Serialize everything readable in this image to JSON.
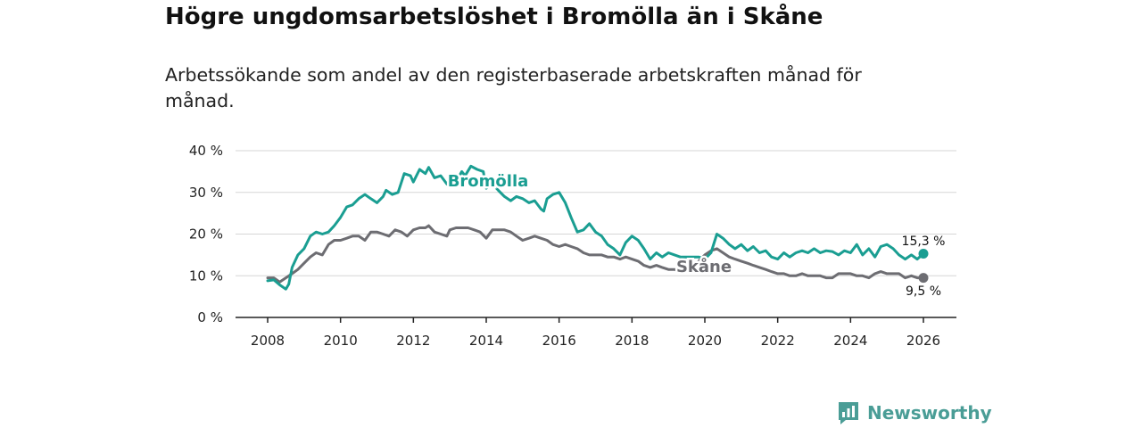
{
  "title": "Högre ungdomsarbetslöshet i Bromölla än i Skåne",
  "subtitle": "Arbetssökande som andel av den registerbaserade arbetskraften månad för månad.",
  "brand": {
    "name": "Newsworthy",
    "color": "#4a9d96"
  },
  "chart_data": {
    "type": "line",
    "x_range": [
      2008,
      2026
    ],
    "ylim": [
      0,
      40
    ],
    "y_ticks": [
      0,
      10,
      20,
      30,
      40
    ],
    "y_tick_labels": [
      "0 %",
      "10 %",
      "20 %",
      "30 %",
      "40 %"
    ],
    "x_ticks": [
      2008,
      2010,
      2012,
      2014,
      2016,
      2018,
      2020,
      2022,
      2024,
      2026
    ],
    "x_tick_labels": [
      "2008",
      "2010",
      "2012",
      "2014",
      "2016",
      "2018",
      "2020",
      "2022",
      "2024",
      "2026"
    ],
    "grid": true,
    "series": [
      {
        "name": "Bromölla",
        "color": "#1a9e92",
        "end_label": "15,3 %",
        "points": [
          [
            2008.0,
            8.8
          ],
          [
            2008.17,
            9.0
          ],
          [
            2008.33,
            7.8
          ],
          [
            2008.5,
            6.8
          ],
          [
            2008.58,
            8.0
          ],
          [
            2008.67,
            12.0
          ],
          [
            2008.83,
            15.0
          ],
          [
            2009.0,
            16.5
          ],
          [
            2009.17,
            19.5
          ],
          [
            2009.33,
            20.5
          ],
          [
            2009.5,
            20.0
          ],
          [
            2009.67,
            20.5
          ],
          [
            2009.83,
            22.0
          ],
          [
            2010.0,
            24.0
          ],
          [
            2010.17,
            26.5
          ],
          [
            2010.33,
            27.0
          ],
          [
            2010.5,
            28.5
          ],
          [
            2010.67,
            29.5
          ],
          [
            2010.83,
            28.5
          ],
          [
            2011.0,
            27.5
          ],
          [
            2011.17,
            29.0
          ],
          [
            2011.25,
            30.5
          ],
          [
            2011.42,
            29.5
          ],
          [
            2011.58,
            30.0
          ],
          [
            2011.75,
            34.5
          ],
          [
            2011.92,
            34.0
          ],
          [
            2012.0,
            32.5
          ],
          [
            2012.17,
            35.5
          ],
          [
            2012.33,
            34.5
          ],
          [
            2012.42,
            36.0
          ],
          [
            2012.58,
            33.5
          ],
          [
            2012.75,
            34.0
          ],
          [
            2012.92,
            32.0
          ],
          [
            2013.0,
            31.5
          ],
          [
            2013.17,
            32.5
          ],
          [
            2013.33,
            35.0
          ],
          [
            2013.42,
            34.0
          ],
          [
            2013.58,
            36.3
          ],
          [
            2013.75,
            35.5
          ],
          [
            2013.92,
            35.0
          ],
          [
            2014.0,
            31.0
          ],
          [
            2014.17,
            32.0
          ],
          [
            2014.33,
            30.5
          ],
          [
            2014.5,
            29.0
          ],
          [
            2014.67,
            28.0
          ],
          [
            2014.83,
            29.0
          ],
          [
            2015.0,
            28.5
          ],
          [
            2015.17,
            27.5
          ],
          [
            2015.33,
            28.0
          ],
          [
            2015.5,
            26.0
          ],
          [
            2015.58,
            25.5
          ],
          [
            2015.67,
            28.5
          ],
          [
            2015.83,
            29.5
          ],
          [
            2016.0,
            30.0
          ],
          [
            2016.17,
            27.5
          ],
          [
            2016.33,
            24.0
          ],
          [
            2016.5,
            20.5
          ],
          [
            2016.67,
            21.0
          ],
          [
            2016.83,
            22.5
          ],
          [
            2017.0,
            20.5
          ],
          [
            2017.17,
            19.5
          ],
          [
            2017.33,
            17.5
          ],
          [
            2017.5,
            16.5
          ],
          [
            2017.67,
            15.0
          ],
          [
            2017.83,
            18.0
          ],
          [
            2018.0,
            19.5
          ],
          [
            2018.17,
            18.5
          ],
          [
            2018.33,
            16.5
          ],
          [
            2018.5,
            14.0
          ],
          [
            2018.67,
            15.5
          ],
          [
            2018.83,
            14.5
          ],
          [
            2019.0,
            15.5
          ],
          [
            2019.17,
            15.0
          ],
          [
            2019.33,
            14.5
          ],
          [
            2019.5,
            14.5
          ],
          [
            2019.67,
            14.5
          ],
          [
            2019.83,
            14.5
          ],
          [
            2020.0,
            14.0
          ],
          [
            2020.17,
            15.5
          ],
          [
            2020.33,
            20.0
          ],
          [
            2020.5,
            19.0
          ],
          [
            2020.67,
            17.5
          ],
          [
            2020.83,
            16.5
          ],
          [
            2021.0,
            17.5
          ],
          [
            2021.17,
            16.0
          ],
          [
            2021.33,
            17.0
          ],
          [
            2021.5,
            15.5
          ],
          [
            2021.67,
            16.0
          ],
          [
            2021.83,
            14.5
          ],
          [
            2022.0,
            14.0
          ],
          [
            2022.17,
            15.5
          ],
          [
            2022.33,
            14.5
          ],
          [
            2022.5,
            15.5
          ],
          [
            2022.67,
            16.0
          ],
          [
            2022.83,
            15.5
          ],
          [
            2023.0,
            16.5
          ],
          [
            2023.17,
            15.5
          ],
          [
            2023.33,
            16.0
          ],
          [
            2023.5,
            15.8
          ],
          [
            2023.67,
            15.0
          ],
          [
            2023.83,
            16.0
          ],
          [
            2024.0,
            15.5
          ],
          [
            2024.17,
            17.5
          ],
          [
            2024.33,
            15.0
          ],
          [
            2024.5,
            16.5
          ],
          [
            2024.67,
            14.5
          ],
          [
            2024.83,
            17.0
          ],
          [
            2025.0,
            17.5
          ],
          [
            2025.17,
            16.5
          ],
          [
            2025.33,
            15.0
          ],
          [
            2025.5,
            14.0
          ],
          [
            2025.67,
            15.0
          ],
          [
            2025.83,
            14.0
          ],
          [
            2026.0,
            15.3
          ]
        ]
      },
      {
        "name": "Skåne",
        "color": "#6d6d72",
        "end_label": "9,5 %",
        "points": [
          [
            2008.0,
            9.5
          ],
          [
            2008.17,
            9.5
          ],
          [
            2008.33,
            8.5
          ],
          [
            2008.5,
            9.5
          ],
          [
            2008.67,
            10.5
          ],
          [
            2008.83,
            11.5
          ],
          [
            2009.0,
            13.0
          ],
          [
            2009.17,
            14.5
          ],
          [
            2009.33,
            15.5
          ],
          [
            2009.5,
            15.0
          ],
          [
            2009.67,
            17.5
          ],
          [
            2009.83,
            18.5
          ],
          [
            2010.0,
            18.5
          ],
          [
            2010.17,
            19.0
          ],
          [
            2010.33,
            19.5
          ],
          [
            2010.5,
            19.5
          ],
          [
            2010.67,
            18.5
          ],
          [
            2010.83,
            20.5
          ],
          [
            2011.0,
            20.5
          ],
          [
            2011.17,
            20.0
          ],
          [
            2011.33,
            19.5
          ],
          [
            2011.5,
            21.0
          ],
          [
            2011.67,
            20.5
          ],
          [
            2011.83,
            19.5
          ],
          [
            2012.0,
            21.0
          ],
          [
            2012.17,
            21.5
          ],
          [
            2012.33,
            21.5
          ],
          [
            2012.42,
            22.0
          ],
          [
            2012.58,
            20.5
          ],
          [
            2012.75,
            20.0
          ],
          [
            2012.92,
            19.5
          ],
          [
            2013.0,
            21.0
          ],
          [
            2013.17,
            21.5
          ],
          [
            2013.33,
            21.5
          ],
          [
            2013.5,
            21.5
          ],
          [
            2013.67,
            21.0
          ],
          [
            2013.83,
            20.5
          ],
          [
            2014.0,
            19.0
          ],
          [
            2014.17,
            21.0
          ],
          [
            2014.33,
            21.0
          ],
          [
            2014.5,
            21.0
          ],
          [
            2014.67,
            20.5
          ],
          [
            2014.83,
            19.5
          ],
          [
            2015.0,
            18.5
          ],
          [
            2015.17,
            19.0
          ],
          [
            2015.33,
            19.5
          ],
          [
            2015.5,
            19.0
          ],
          [
            2015.67,
            18.5
          ],
          [
            2015.83,
            17.5
          ],
          [
            2016.0,
            17.0
          ],
          [
            2016.17,
            17.5
          ],
          [
            2016.33,
            17.0
          ],
          [
            2016.5,
            16.5
          ],
          [
            2016.67,
            15.5
          ],
          [
            2016.83,
            15.0
          ],
          [
            2017.0,
            15.0
          ],
          [
            2017.17,
            15.0
          ],
          [
            2017.33,
            14.5
          ],
          [
            2017.5,
            14.5
          ],
          [
            2017.67,
            14.0
          ],
          [
            2017.83,
            14.5
          ],
          [
            2018.0,
            14.0
          ],
          [
            2018.17,
            13.5
          ],
          [
            2018.33,
            12.5
          ],
          [
            2018.5,
            12.0
          ],
          [
            2018.67,
            12.5
          ],
          [
            2018.83,
            12.0
          ],
          [
            2019.0,
            11.5
          ],
          [
            2019.17,
            11.5
          ],
          [
            2019.33,
            11.0
          ],
          [
            2019.5,
            11.0
          ],
          [
            2019.67,
            12.0
          ],
          [
            2019.83,
            13.5
          ],
          [
            2020.0,
            15.0
          ],
          [
            2020.17,
            16.0
          ],
          [
            2020.33,
            16.5
          ],
          [
            2020.5,
            15.5
          ],
          [
            2020.67,
            14.5
          ],
          [
            2020.83,
            14.0
          ],
          [
            2021.0,
            13.5
          ],
          [
            2021.17,
            13.0
          ],
          [
            2021.33,
            12.5
          ],
          [
            2021.5,
            12.0
          ],
          [
            2021.67,
            11.5
          ],
          [
            2021.83,
            11.0
          ],
          [
            2022.0,
            10.5
          ],
          [
            2022.17,
            10.5
          ],
          [
            2022.33,
            10.0
          ],
          [
            2022.5,
            10.0
          ],
          [
            2022.67,
            10.5
          ],
          [
            2022.83,
            10.0
          ],
          [
            2023.0,
            10.0
          ],
          [
            2023.17,
            10.0
          ],
          [
            2023.33,
            9.5
          ],
          [
            2023.5,
            9.5
          ],
          [
            2023.67,
            10.5
          ],
          [
            2023.83,
            10.5
          ],
          [
            2024.0,
            10.5
          ],
          [
            2024.17,
            10.0
          ],
          [
            2024.33,
            10.0
          ],
          [
            2024.5,
            9.5
          ],
          [
            2024.67,
            10.5
          ],
          [
            2024.83,
            11.0
          ],
          [
            2025.0,
            10.5
          ],
          [
            2025.17,
            10.5
          ],
          [
            2025.33,
            10.5
          ],
          [
            2025.5,
            9.5
          ],
          [
            2025.67,
            10.0
          ],
          [
            2025.83,
            9.5
          ],
          [
            2026.0,
            9.5
          ]
        ]
      }
    ]
  }
}
